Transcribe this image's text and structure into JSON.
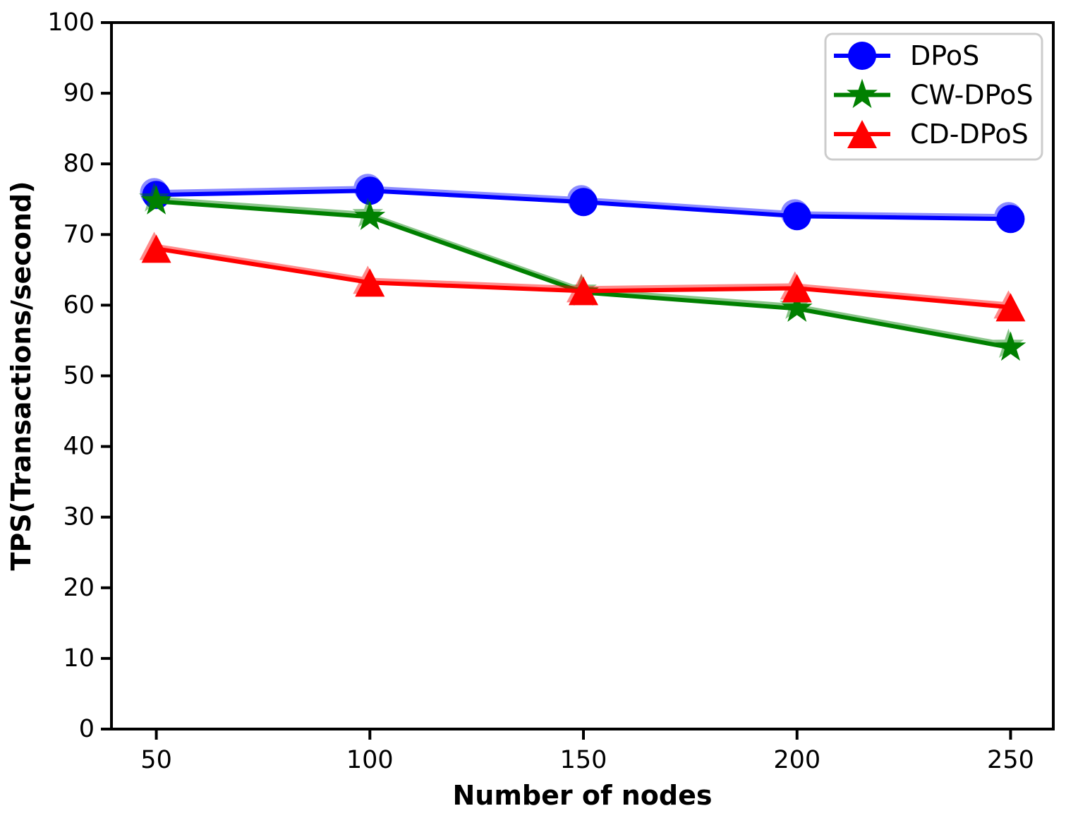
{
  "figure": {
    "background": "#ffffff",
    "axis_color": "#000000",
    "legend_border_color": "#cccccc"
  },
  "chart_data": {
    "type": "line",
    "title": "",
    "xlabel": "Number of nodes",
    "ylabel": "TPS(Transactions/second)",
    "x": [
      50,
      100,
      150,
      200,
      250
    ],
    "x_tick_labels": [
      "50",
      "100",
      "150",
      "200",
      "250"
    ],
    "y_ticks": [
      0,
      10,
      20,
      30,
      40,
      50,
      60,
      70,
      80,
      90,
      100
    ],
    "xlim": [
      39.5,
      260.0
    ],
    "ylim": [
      0,
      100
    ],
    "grid": false,
    "legend_position": "upper right",
    "series": [
      {
        "name": "DPoS",
        "color": "#0000ff",
        "marker": "circle",
        "values": [
          75.6,
          76.2,
          74.6,
          72.6,
          72.2
        ]
      },
      {
        "name": "CW-DPoS",
        "color": "#008000",
        "marker": "star",
        "values": [
          74.7,
          72.5,
          61.8,
          59.5,
          54.0
        ]
      },
      {
        "name": "CD-DPoS",
        "color": "#ff0000",
        "marker": "triangle",
        "values": [
          68.0,
          63.2,
          62.0,
          62.4,
          59.7
        ]
      }
    ]
  }
}
